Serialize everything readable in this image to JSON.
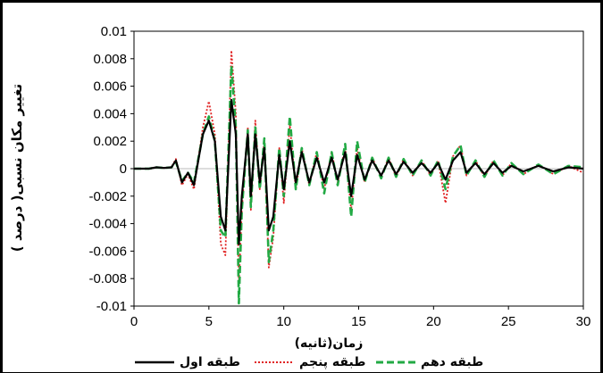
{
  "chart_data": {
    "type": "line",
    "xlabel": "زمان(ثانیه)",
    "ylabel": "تغییر مکان نسبی( درصد )",
    "xlim": [
      0,
      30
    ],
    "ylim": [
      -0.01,
      0.01
    ],
    "x_ticks": [
      "0",
      "5",
      "10",
      "15",
      "20",
      "25",
      "30"
    ],
    "y_ticks": [
      "0.01",
      "0.008",
      "0.006",
      "0.004",
      "0.002",
      "0",
      "-0.002",
      "-0.004",
      "-0.006",
      "-0.008",
      "-0.01"
    ],
    "grid": false,
    "legend_position": "bottom",
    "series": [
      {
        "name": "طبقه اول",
        "color": "#000000",
        "style": "solid",
        "points": [
          [
            0,
            0
          ],
          [
            1,
            0
          ],
          [
            1.5,
            0.0001
          ],
          [
            2,
            5e-05
          ],
          [
            2.5,
            0.0001
          ],
          [
            2.8,
            0.0006
          ],
          [
            3.2,
            -0.001
          ],
          [
            3.6,
            -0.0003
          ],
          [
            4,
            -0.0012
          ],
          [
            4.6,
            0.0025
          ],
          [
            5,
            0.0035
          ],
          [
            5.4,
            0.002
          ],
          [
            5.8,
            -0.0035
          ],
          [
            6.1,
            -0.0045
          ],
          [
            6.5,
            0.005
          ],
          [
            6.8,
            0.0025
          ],
          [
            7.0,
            -0.0055
          ],
          [
            7.2,
            -0.002
          ],
          [
            7.6,
            0.0025
          ],
          [
            7.8,
            -0.002
          ],
          [
            8.1,
            0.0025
          ],
          [
            8.4,
            -0.001
          ],
          [
            8.7,
            0.0015
          ],
          [
            9.0,
            -0.0045
          ],
          [
            9.3,
            -0.0035
          ],
          [
            9.7,
            0.001
          ],
          [
            10.0,
            -0.0015
          ],
          [
            10.4,
            0.002
          ],
          [
            10.8,
            -0.001
          ],
          [
            11.2,
            0.0012
          ],
          [
            11.7,
            -0.001
          ],
          [
            12.2,
            0.0008
          ],
          [
            12.7,
            -0.001
          ],
          [
            13.2,
            0.0008
          ],
          [
            13.6,
            -0.0008
          ],
          [
            14.1,
            0.0012
          ],
          [
            14.5,
            -0.002
          ],
          [
            14.9,
            0.001
          ],
          [
            15.4,
            -0.0008
          ],
          [
            15.9,
            0.0006
          ],
          [
            16.5,
            -0.0005
          ],
          [
            17.0,
            0.0006
          ],
          [
            17.5,
            -0.0004
          ],
          [
            18.0,
            0.0005
          ],
          [
            18.6,
            -0.0003
          ],
          [
            19.2,
            0.0004
          ],
          [
            19.8,
            -0.0003
          ],
          [
            20.3,
            0.0004
          ],
          [
            20.8,
            -0.0008
          ],
          [
            21.3,
            0.0006
          ],
          [
            21.8,
            0.0012
          ],
          [
            22.2,
            -0.0003
          ],
          [
            22.8,
            0.0004
          ],
          [
            23.4,
            -0.0004
          ],
          [
            24.0,
            0.0004
          ],
          [
            24.6,
            -0.0003
          ],
          [
            25.2,
            0.0002
          ],
          [
            26,
            -0.0002
          ],
          [
            27,
            0.0002
          ],
          [
            28,
            -0.0002
          ],
          [
            29,
            0.0001
          ],
          [
            30,
            0
          ]
        ]
      },
      {
        "name": "طبقه پنجم",
        "color": "#e02020",
        "style": "dotted",
        "points": [
          [
            0,
            0
          ],
          [
            1,
            0
          ],
          [
            1.5,
            0.0001
          ],
          [
            2,
            5e-05
          ],
          [
            2.5,
            0.0001
          ],
          [
            2.8,
            0.0007
          ],
          [
            3.2,
            -0.0012
          ],
          [
            3.6,
            -0.0004
          ],
          [
            4,
            -0.0015
          ],
          [
            4.6,
            0.003
          ],
          [
            5,
            0.0049
          ],
          [
            5.4,
            0.0025
          ],
          [
            5.8,
            -0.0055
          ],
          [
            6.1,
            -0.0063
          ],
          [
            6.5,
            0.0086
          ],
          [
            6.8,
            0.004
          ],
          [
            7.0,
            -0.0085
          ],
          [
            7.2,
            -0.003
          ],
          [
            7.6,
            0.003
          ],
          [
            7.8,
            -0.003
          ],
          [
            8.1,
            0.0035
          ],
          [
            8.4,
            -0.0015
          ],
          [
            8.7,
            0.002
          ],
          [
            9.0,
            -0.0072
          ],
          [
            9.3,
            -0.005
          ],
          [
            9.7,
            0.0015
          ],
          [
            10.0,
            -0.0025
          ],
          [
            10.4,
            0.0032
          ],
          [
            10.8,
            -0.0015
          ],
          [
            11.2,
            0.0015
          ],
          [
            11.7,
            -0.0012
          ],
          [
            12.2,
            0.0012
          ],
          [
            12.7,
            -0.0015
          ],
          [
            13.2,
            0.0012
          ],
          [
            13.6,
            -0.001
          ],
          [
            14.1,
            0.0015
          ],
          [
            14.5,
            -0.003
          ],
          [
            14.9,
            0.0015
          ],
          [
            15.4,
            -0.001
          ],
          [
            15.9,
            0.0008
          ],
          [
            16.5,
            -0.0006
          ],
          [
            17.0,
            0.0008
          ],
          [
            17.5,
            -0.0006
          ],
          [
            18.0,
            0.0007
          ],
          [
            18.6,
            -0.0005
          ],
          [
            19.2,
            0.0006
          ],
          [
            19.8,
            -0.0005
          ],
          [
            20.3,
            0.0006
          ],
          [
            20.8,
            -0.0025
          ],
          [
            21.3,
            0.0009
          ],
          [
            21.8,
            0.0017
          ],
          [
            22.2,
            -0.0005
          ],
          [
            22.8,
            0.0006
          ],
          [
            23.4,
            -0.0006
          ],
          [
            24.0,
            0.0006
          ],
          [
            24.6,
            -0.0005
          ],
          [
            25.2,
            0.0004
          ],
          [
            26,
            -0.0004
          ],
          [
            27,
            0.0003
          ],
          [
            28,
            -0.0004
          ],
          [
            29,
            0.0002
          ],
          [
            30,
            -0.0003
          ]
        ]
      },
      {
        "name": "طبقه دهم",
        "color": "#22aa44",
        "style": "dashed",
        "points": [
          [
            0,
            0
          ],
          [
            1,
            0
          ],
          [
            1.5,
            0.0001
          ],
          [
            2,
            5e-05
          ],
          [
            2.5,
            0.0001
          ],
          [
            2.8,
            0.0005
          ],
          [
            3.2,
            -0.0009
          ],
          [
            3.6,
            -0.0003
          ],
          [
            4,
            -0.001
          ],
          [
            4.6,
            0.0025
          ],
          [
            5,
            0.0038
          ],
          [
            5.4,
            0.002
          ],
          [
            5.8,
            -0.0045
          ],
          [
            6.1,
            -0.005
          ],
          [
            6.5,
            0.0075
          ],
          [
            6.8,
            0.003
          ],
          [
            7.0,
            -0.0098
          ],
          [
            7.2,
            -0.003
          ],
          [
            7.6,
            0.0028
          ],
          [
            7.8,
            -0.0028
          ],
          [
            8.1,
            0.003
          ],
          [
            8.4,
            -0.0015
          ],
          [
            8.7,
            0.0022
          ],
          [
            9.0,
            -0.0068
          ],
          [
            9.3,
            -0.0045
          ],
          [
            9.7,
            0.0015
          ],
          [
            10.0,
            -0.002
          ],
          [
            10.4,
            0.0038
          ],
          [
            10.8,
            -0.0015
          ],
          [
            11.2,
            0.0015
          ],
          [
            11.7,
            -0.0012
          ],
          [
            12.2,
            0.0012
          ],
          [
            12.7,
            -0.0018
          ],
          [
            13.2,
            0.0012
          ],
          [
            13.6,
            -0.0012
          ],
          [
            14.1,
            0.0018
          ],
          [
            14.5,
            -0.0035
          ],
          [
            14.9,
            0.002
          ],
          [
            15.4,
            -0.001
          ],
          [
            15.9,
            0.0008
          ],
          [
            16.5,
            -0.0007
          ],
          [
            17.0,
            0.0008
          ],
          [
            17.5,
            -0.0006
          ],
          [
            18.0,
            0.0007
          ],
          [
            18.6,
            -0.0005
          ],
          [
            19.2,
            0.0006
          ],
          [
            19.8,
            -0.0005
          ],
          [
            20.3,
            0.0006
          ],
          [
            20.8,
            -0.0015
          ],
          [
            21.3,
            0.0009
          ],
          [
            21.8,
            0.0017
          ],
          [
            22.2,
            -0.0005
          ],
          [
            22.8,
            0.0006
          ],
          [
            23.4,
            -0.0006
          ],
          [
            24.0,
            0.0006
          ],
          [
            24.6,
            -0.0005
          ],
          [
            25.2,
            0.0004
          ],
          [
            26,
            -0.0004
          ],
          [
            27,
            0.0003
          ],
          [
            28,
            -0.0004
          ],
          [
            29,
            0.0002
          ],
          [
            30,
            0.0001
          ]
        ]
      }
    ]
  }
}
